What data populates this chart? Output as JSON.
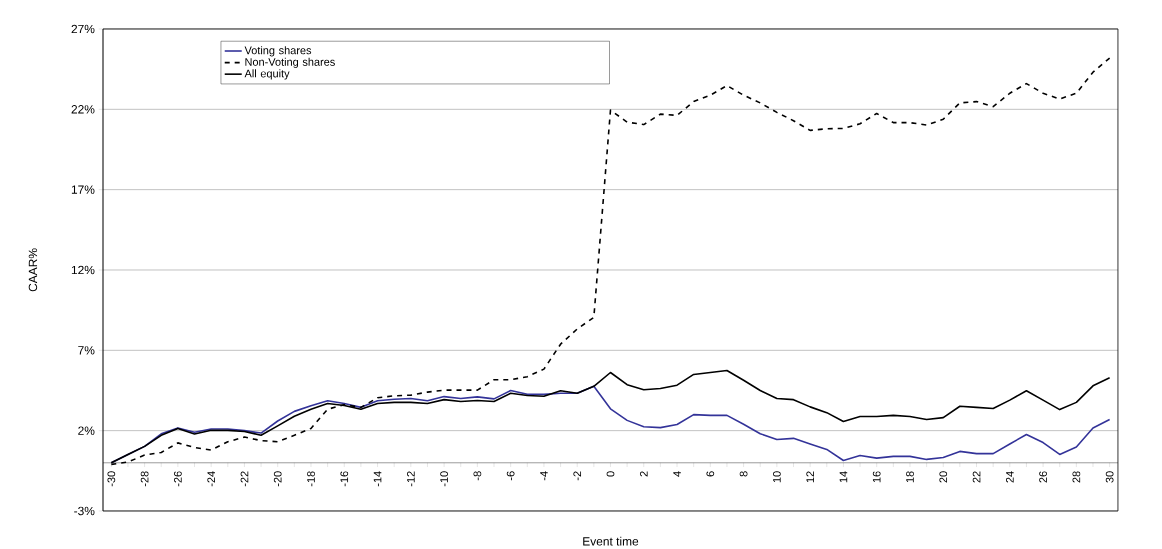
{
  "chart_data": {
    "type": "line",
    "xlabel": "Event time",
    "ylabel": "CAAR%",
    "x": [
      -30,
      -29,
      -28,
      -27,
      -26,
      -25,
      -24,
      -23,
      -22,
      -21,
      -20,
      -19,
      -18,
      -17,
      -16,
      -15,
      -14,
      -13,
      -12,
      -11,
      -10,
      -9,
      -8,
      -7,
      -6,
      -5,
      -4,
      -3,
      -2,
      -1,
      0,
      1,
      2,
      3,
      4,
      5,
      6,
      7,
      8,
      9,
      10,
      11,
      12,
      13,
      14,
      15,
      16,
      17,
      18,
      19,
      20,
      21,
      22,
      23,
      24,
      25,
      26,
      27,
      28,
      29,
      30
    ],
    "series": [
      {
        "name": "Voting shares",
        "color": "#333399",
        "line_style": "solid",
        "values": [
          0,
          0.52,
          1.02,
          1.8,
          2.17,
          1.9,
          2.1,
          2.1,
          2.0,
          1.85,
          2.6,
          3.2,
          3.55,
          3.86,
          3.69,
          3.45,
          3.86,
          3.95,
          4.0,
          3.86,
          4.12,
          4.0,
          4.1,
          3.98,
          4.5,
          4.26,
          4.26,
          4.33,
          4.33,
          4.76,
          3.36,
          2.64,
          2.24,
          2.19,
          2.38,
          3.0,
          2.95,
          2.95,
          2.4,
          1.81,
          1.45,
          1.52,
          1.17,
          0.83,
          0.14,
          0.45,
          0.29,
          0.4,
          0.4,
          0.21,
          0.33,
          0.71,
          0.57,
          0.57,
          1.17,
          1.76,
          1.26,
          0.52,
          0.98,
          2.17,
          2.69
        ]
      },
      {
        "name": "Non-Voting shares",
        "color": "#000000",
        "line_style": "dashed",
        "values": [
          -0.1,
          0.05,
          0.48,
          0.64,
          1.24,
          0.95,
          0.79,
          1.31,
          1.6,
          1.38,
          1.31,
          1.71,
          2.14,
          3.33,
          3.62,
          3.45,
          4.05,
          4.17,
          4.21,
          4.4,
          4.52,
          4.52,
          4.52,
          5.17,
          5.17,
          5.36,
          5.83,
          7.38,
          8.33,
          9.05,
          21.95,
          21.2,
          21.05,
          21.7,
          21.62,
          22.48,
          22.88,
          23.48,
          22.88,
          22.4,
          21.81,
          21.29,
          20.69,
          20.79,
          20.81,
          21.1,
          21.74,
          21.17,
          21.17,
          21.02,
          21.38,
          22.4,
          22.48,
          22.17,
          23.0,
          23.6,
          23.0,
          22.64,
          23.0,
          24.31,
          25.19
        ]
      },
      {
        "name": "All equity",
        "color": "#000000",
        "line_style": "solid",
        "values": [
          0,
          0.52,
          1.02,
          1.71,
          2.14,
          1.79,
          2.02,
          2.02,
          1.95,
          1.71,
          2.3,
          2.9,
          3.33,
          3.69,
          3.57,
          3.33,
          3.69,
          3.76,
          3.76,
          3.69,
          3.93,
          3.81,
          3.88,
          3.81,
          4.33,
          4.19,
          4.14,
          4.48,
          4.33,
          4.76,
          5.62,
          4.86,
          4.55,
          4.62,
          4.83,
          5.5,
          5.62,
          5.74,
          5.14,
          4.5,
          4.0,
          3.93,
          3.48,
          3.12,
          2.57,
          2.88,
          2.88,
          2.95,
          2.88,
          2.69,
          2.81,
          3.52,
          3.45,
          3.38,
          3.9,
          4.48,
          3.9,
          3.31,
          3.76,
          4.79,
          5.29
        ]
      }
    ],
    "xlim": [
      -30.5,
      30.5
    ],
    "ylim": [
      -3,
      27
    ],
    "xticks": [
      -30,
      {
        "value": -29,
        "label": null
      },
      -28,
      {
        "value": -27,
        "label": null
      },
      -26,
      {
        "value": -25,
        "label": null
      },
      -24,
      {
        "value": -23,
        "label": null
      },
      -22,
      {
        "value": -21,
        "label": null
      },
      -20,
      {
        "value": -19,
        "label": null
      },
      -18,
      {
        "value": -17,
        "label": null
      },
      -16,
      {
        "value": -15,
        "label": null
      },
      -14,
      {
        "value": -13,
        "label": null
      },
      -12,
      {
        "value": -11,
        "label": null
      },
      -10,
      {
        "value": -9,
        "label": null
      },
      -8,
      {
        "value": -7,
        "label": null
      },
      -6,
      {
        "value": -5,
        "label": null
      },
      -4,
      {
        "value": -3,
        "label": null
      },
      -2,
      {
        "value": -1,
        "label": null
      },
      0,
      {
        "value": 1,
        "label": null
      },
      2,
      {
        "value": 3,
        "label": null
      },
      4,
      {
        "value": 5,
        "label": null
      },
      6,
      {
        "value": 7,
        "label": null
      },
      8,
      {
        "value": 9,
        "label": null
      },
      10,
      {
        "value": 11,
        "label": null
      },
      12,
      {
        "value": 13,
        "label": null
      },
      14,
      {
        "value": 15,
        "label": null
      },
      16,
      {
        "value": 17,
        "label": null
      },
      18,
      {
        "value": 19,
        "label": null
      },
      20,
      {
        "value": 21,
        "label": null
      },
      22,
      {
        "value": 23,
        "label": null
      },
      24,
      {
        "value": 25,
        "label": null
      },
      26,
      {
        "value": 27,
        "label": null
      },
      28,
      {
        "value": 29,
        "label": null
      },
      30
    ],
    "yticks": [
      {
        "value": -3,
        "label": "-3%"
      },
      {
        "value": 2,
        "label": "2%"
      },
      {
        "value": 7,
        "label": "7%"
      },
      {
        "value": 12,
        "label": "12%"
      },
      {
        "value": 17,
        "label": "17%"
      },
      {
        "value": 22,
        "label": "22%"
      },
      {
        "value": 27,
        "label": "27%"
      }
    ],
    "grid": "y",
    "legend": "top left",
    "marker": "none"
  }
}
